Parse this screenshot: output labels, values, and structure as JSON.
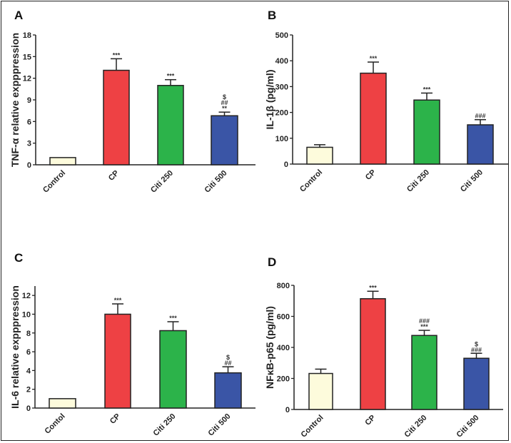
{
  "chart_data": [
    {
      "panel": "A",
      "type": "bar",
      "ylabel": "TNF-α relative expppression",
      "categories": [
        "Control",
        "CP",
        "Citi 250",
        "Citi 500"
      ],
      "values": [
        1,
        13.1,
        11.0,
        6.8
      ],
      "error_upper": [
        1,
        14.7,
        11.8,
        7.3
      ],
      "annotations": [
        [],
        [
          "***"
        ],
        [
          "***"
        ],
        [
          "**",
          "##",
          "$"
        ]
      ],
      "ylim": [
        0,
        18
      ],
      "yticks": [
        0,
        3,
        6,
        9,
        12,
        15,
        18
      ]
    },
    {
      "panel": "B",
      "type": "bar",
      "ylabel": "IL-1β (pg/ml)",
      "categories": [
        "Control",
        "CP",
        "Citi 250",
        "Citi 500"
      ],
      "values": [
        65,
        352,
        248,
        152
      ],
      "error_upper": [
        75,
        395,
        275,
        172
      ],
      "annotations": [
        [],
        [
          "***"
        ],
        [
          "***"
        ],
        [
          "###"
        ]
      ],
      "ylim": [
        0,
        500
      ],
      "yticks": [
        0,
        100,
        200,
        300,
        400,
        500
      ]
    },
    {
      "panel": "C",
      "type": "bar",
      "ylabel": "IL-6 relative expppression",
      "categories": [
        "Contol",
        "CP",
        "Citi 250",
        "Citi 500"
      ],
      "values": [
        1,
        10.0,
        8.25,
        3.75
      ],
      "error_upper": [
        1,
        11.1,
        9.2,
        4.4
      ],
      "annotations": [
        [],
        [
          "***"
        ],
        [
          "***"
        ],
        [
          "##",
          "$"
        ]
      ],
      "ylim": [
        0,
        13
      ],
      "yticks": [
        0,
        2,
        4,
        6,
        8,
        10,
        12
      ]
    },
    {
      "panel": "D",
      "type": "bar",
      "ylabel": "NFκB-p65 (pg/ml)",
      "categories": [
        "Control",
        "CP",
        "Citi 250",
        "Citi 500"
      ],
      "values": [
        232,
        714,
        477,
        330
      ],
      "error_upper": [
        260,
        762,
        510,
        362
      ],
      "annotations": [
        [],
        [
          "***"
        ],
        [
          "***",
          "###"
        ],
        [
          "###",
          "$"
        ]
      ],
      "ylim": [
        0,
        800
      ],
      "yticks": [
        0,
        200,
        400,
        600,
        800
      ]
    }
  ],
  "colors": [
    "#fdfbdc",
    "#ee4144",
    "#2cb34a",
    "#3a55a6"
  ]
}
